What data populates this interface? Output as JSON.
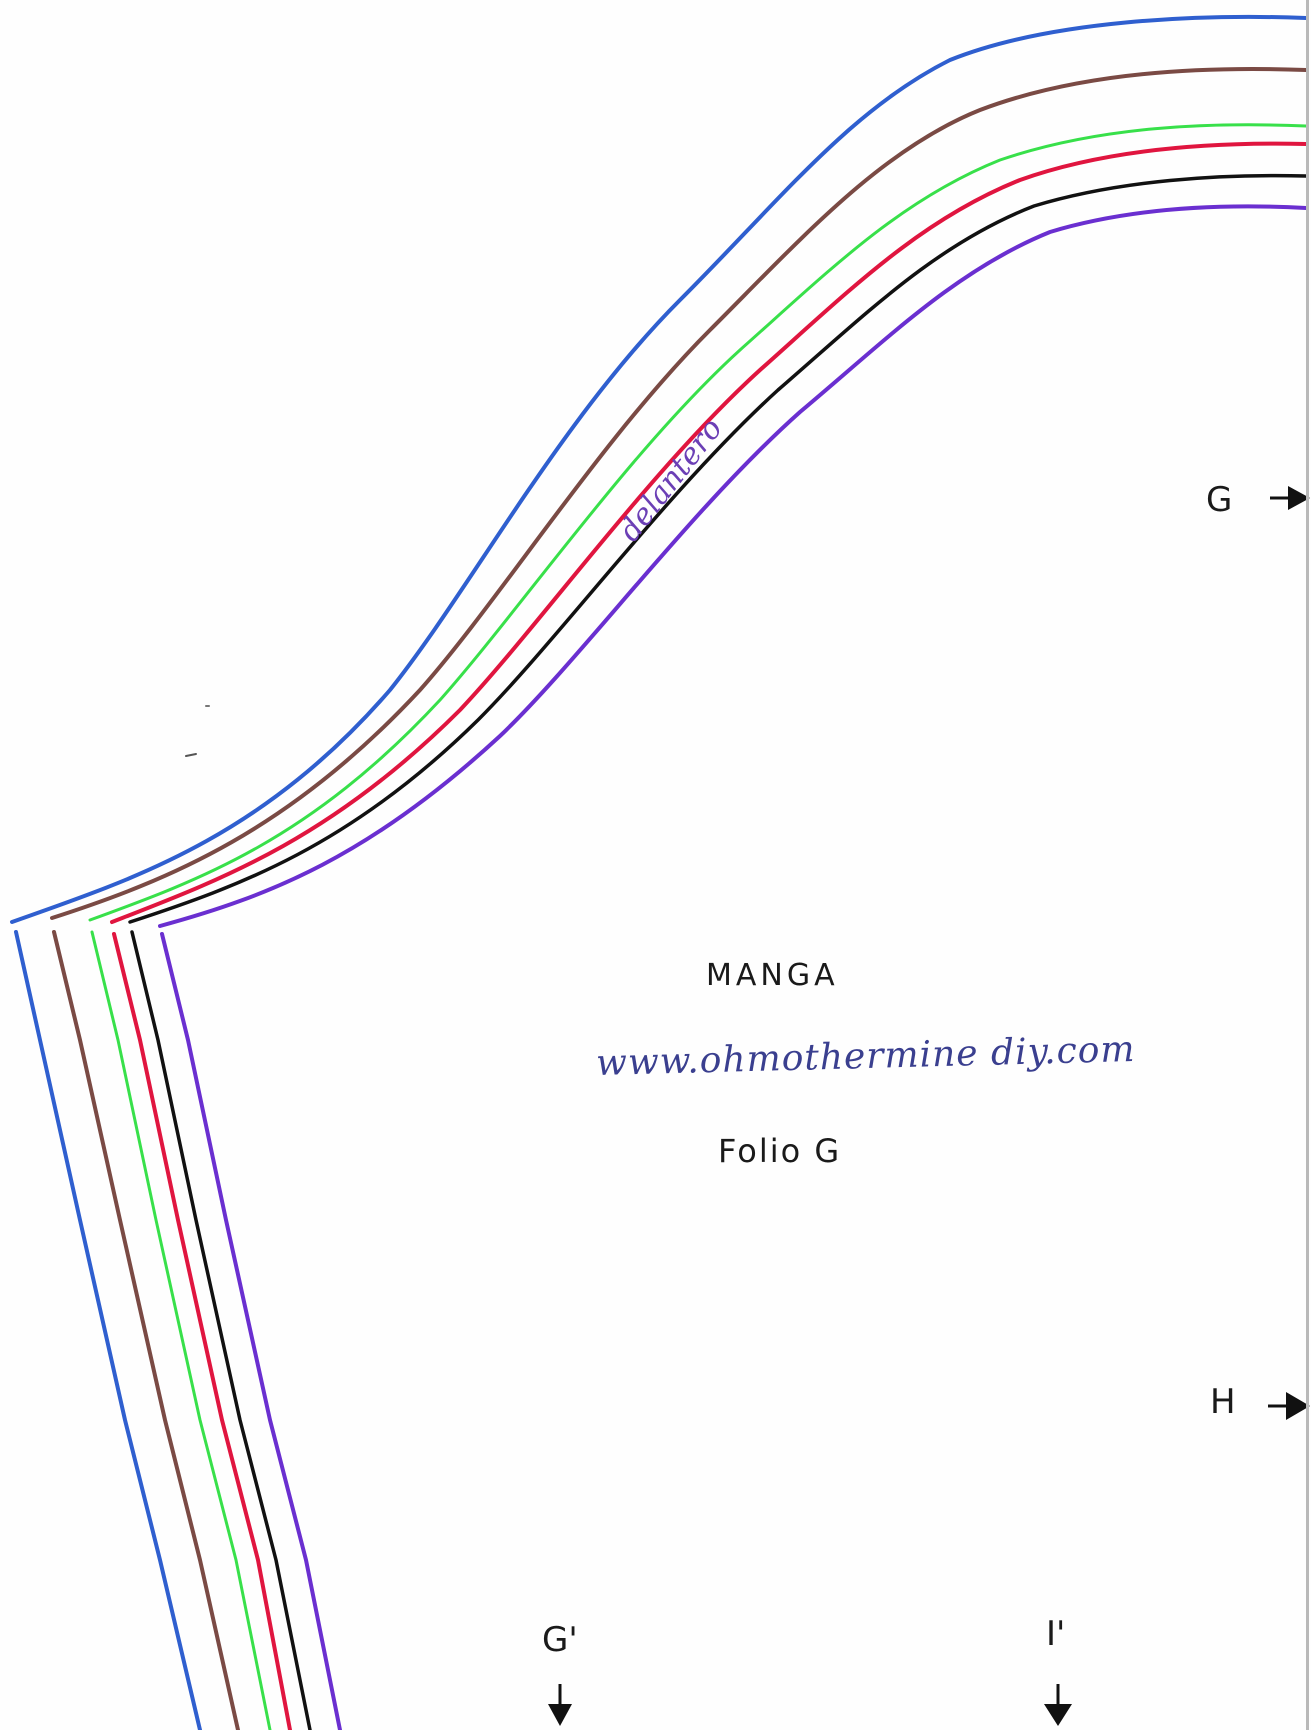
{
  "pattern": {
    "label_piece": "MANGA",
    "label_site": "www.ohmothermine diy.com",
    "label_folio": "Folio G",
    "label_front": "delantero"
  },
  "markers": {
    "g": "G",
    "h": "H",
    "g_prime": "G'",
    "i_prime": "I'"
  },
  "size_line_colors": {
    "line_1": "#2f5fcf",
    "line_2": "#7a4a44",
    "line_3": "#38e04a",
    "line_4": "#e0153f",
    "line_5": "#111111",
    "line_6": "#6a2fd0"
  },
  "icons": [
    "arrow-right-icon",
    "arrow-right-icon",
    "arrow-down-icon",
    "arrow-down-icon"
  ]
}
